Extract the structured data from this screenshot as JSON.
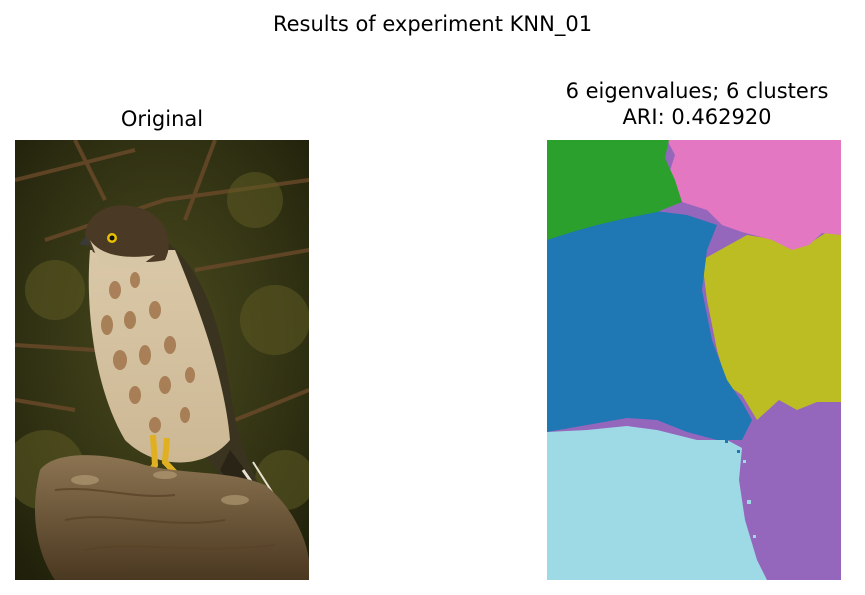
{
  "figure": {
    "suptitle": "Results of experiment KNN_01"
  },
  "left_panel": {
    "title": "Original",
    "image_subject": "hawk perched on tree stump"
  },
  "right_panel": {
    "title_line1": "6 eigenvalues; 6 clusters",
    "title_line2": "ARI: 0.462920",
    "clusters": [
      {
        "label": "green",
        "color": "#2ca02c"
      },
      {
        "label": "pink",
        "color": "#e377c2"
      },
      {
        "label": "blue",
        "color": "#1f77b4"
      },
      {
        "label": "olive",
        "color": "#bcbd22"
      },
      {
        "label": "light-cyan",
        "color": "#9edae5"
      },
      {
        "label": "purple",
        "color": "#9467bd"
      }
    ]
  }
}
